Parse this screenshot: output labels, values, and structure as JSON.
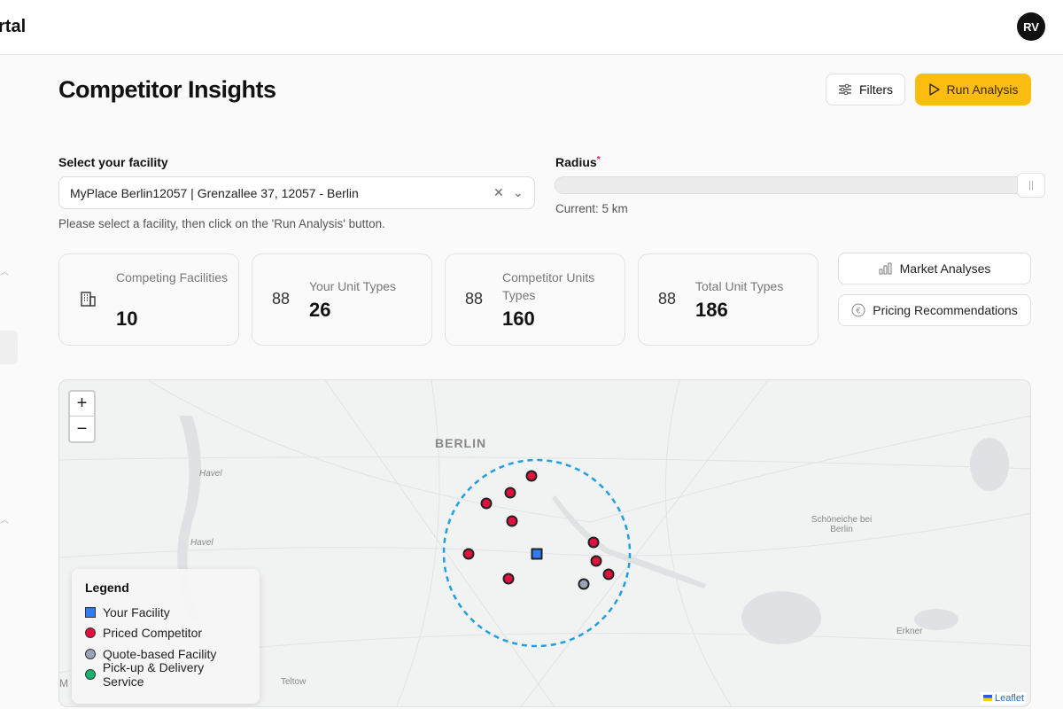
{
  "header": {
    "brand": "rtal",
    "avatar": "RV"
  },
  "page": {
    "title": "Competitor Insights",
    "filters_label": "Filters",
    "run_label": "Run Analysis"
  },
  "facility": {
    "label": "Select your facility",
    "value": "MyPlace Berlin12057 | Grenzallee 37, 12057 - Berlin",
    "hint": "Please select a facility, then click on the 'Run Analysis' button."
  },
  "radius": {
    "label": "Radius",
    "required": "*",
    "current": "Current: 5 km",
    "fraction": 1.0
  },
  "stats": [
    {
      "label": "Competing Facilities",
      "value": "10",
      "icon": "building-icon"
    },
    {
      "label": "Your Unit Types",
      "value": "26",
      "icon": "grid-icon"
    },
    {
      "label": "Competitor Units Types",
      "value": "160",
      "icon": "grid-icon"
    },
    {
      "label": "Total Unit Types",
      "value": "186",
      "icon": "grid-icon"
    }
  ],
  "actions": {
    "market": "Market Analyses",
    "pricing": "Pricing Recommendations"
  },
  "map": {
    "places": {
      "berlin": "BERLIN",
      "havel1": "Havel",
      "havel2": "Havel",
      "schoeneiche": "Schöneiche bei Berlin",
      "erkner": "Erkner",
      "teltow": "Teltow",
      "m": "M"
    },
    "attribution": "Leaflet",
    "zoom_in": "+",
    "zoom_out": "−"
  },
  "legend": {
    "title": "Legend",
    "items": [
      "Your Facility",
      "Priced Competitor",
      "Quote-based Facility",
      "Pick-up & Delivery Service"
    ]
  },
  "colors": {
    "accent": "#fdbd10",
    "facility": "#2f7df6",
    "priced": "#e0103f",
    "quote": "#9aa3b8",
    "delivery": "#10b56e",
    "radius": "#1fa0e0"
  }
}
